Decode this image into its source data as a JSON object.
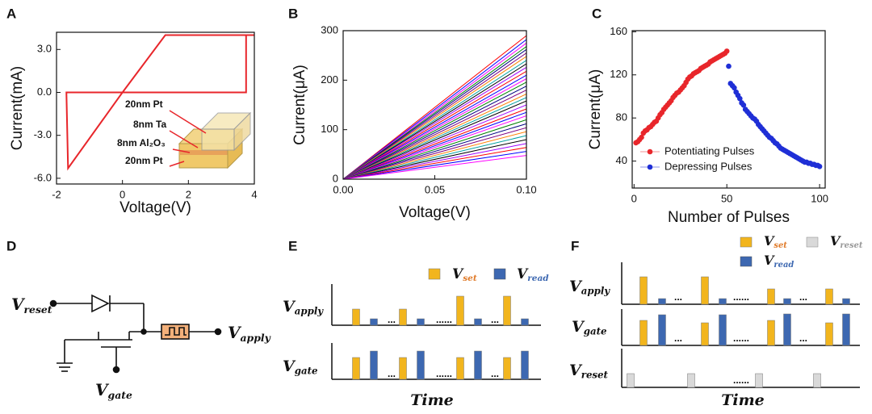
{
  "chart_data": [
    {
      "type": "line",
      "title": "A",
      "x_label": "Voltage(V)",
      "y_label": "Current(mA)",
      "x": [
        0,
        1.3,
        4,
        3.75,
        3.75,
        -1.7,
        -1.65,
        0
      ],
      "series": [
        {
          "color": "#e8262b",
          "values": [
            0,
            4,
            4,
            4,
            0,
            0,
            -5.3,
            0
          ]
        }
      ],
      "xlim": [
        -2,
        4
      ],
      "ylim": [
        -6.4,
        4.2
      ],
      "xticks": [
        -2,
        0,
        2,
        4
      ],
      "yticks": [
        {
          "value": -6,
          "label": "-6.0"
        },
        {
          "value": -3,
          "label": "-3.0"
        },
        {
          "value": 0,
          "label": "0.0"
        },
        {
          "value": 3,
          "label": "3.0"
        }
      ],
      "annotations": [
        "20nm Pt",
        "8nm Ta",
        "8nm Al₂O₃",
        "20nm Pt"
      ]
    },
    {
      "type": "line",
      "title": "B",
      "x_label": "Voltage(V)",
      "y_label": "Current(μA)",
      "x": [
        0,
        0.1
      ],
      "series": [
        {
          "color": "#ff0000",
          "values": [
            0,
            290
          ]
        },
        {
          "color": "#0000ff",
          "values": [
            0,
            282
          ]
        },
        {
          "color": "#ff00ff",
          "values": [
            0,
            275
          ]
        },
        {
          "color": "#008000",
          "values": [
            0,
            268
          ]
        },
        {
          "color": "#000080",
          "values": [
            0,
            262
          ]
        },
        {
          "color": "#800080",
          "values": [
            0,
            255
          ]
        },
        {
          "color": "#ff8000",
          "values": [
            0,
            248
          ]
        },
        {
          "color": "#00a0a0",
          "values": [
            0,
            240
          ]
        },
        {
          "color": "#000000",
          "values": [
            0,
            233
          ]
        },
        {
          "color": "#a000ff",
          "values": [
            0,
            226
          ]
        },
        {
          "color": "#ff0000",
          "values": [
            0,
            218
          ]
        },
        {
          "color": "#0000ff",
          "values": [
            0,
            210
          ]
        },
        {
          "color": "#ff00ff",
          "values": [
            0,
            203
          ]
        },
        {
          "color": "#008000",
          "values": [
            0,
            196
          ]
        },
        {
          "color": "#000080",
          "values": [
            0,
            188
          ]
        },
        {
          "color": "#800080",
          "values": [
            0,
            180
          ]
        },
        {
          "color": "#ff8000",
          "values": [
            0,
            172
          ]
        },
        {
          "color": "#00a0a0",
          "values": [
            0,
            165
          ]
        },
        {
          "color": "#000000",
          "values": [
            0,
            158
          ]
        },
        {
          "color": "#a000ff",
          "values": [
            0,
            150
          ]
        },
        {
          "color": "#ff0000",
          "values": [
            0,
            142
          ]
        },
        {
          "color": "#0000ff",
          "values": [
            0,
            135
          ]
        },
        {
          "color": "#ff00ff",
          "values": [
            0,
            128
          ]
        },
        {
          "color": "#008000",
          "values": [
            0,
            120
          ]
        },
        {
          "color": "#000080",
          "values": [
            0,
            112
          ]
        },
        {
          "color": "#800080",
          "values": [
            0,
            104
          ]
        },
        {
          "color": "#ff8000",
          "values": [
            0,
            96
          ]
        },
        {
          "color": "#00a0a0",
          "values": [
            0,
            88
          ]
        },
        {
          "color": "#000000",
          "values": [
            0,
            80
          ]
        },
        {
          "color": "#a000ff",
          "values": [
            0,
            72
          ]
        },
        {
          "color": "#ff0000",
          "values": [
            0,
            64
          ]
        },
        {
          "color": "#0000ff",
          "values": [
            0,
            56
          ]
        },
        {
          "color": "#ff00ff",
          "values": [
            0,
            48
          ]
        }
      ],
      "xlim": [
        0,
        0.1
      ],
      "ylim": [
        0,
        300
      ],
      "xticks": [
        {
          "value": 0,
          "label": "0.00"
        },
        {
          "value": 0.05,
          "label": "0.05"
        },
        {
          "value": 0.1,
          "label": "0.10"
        }
      ],
      "yticks": [
        0,
        100,
        200,
        300
      ]
    },
    {
      "type": "scatter",
      "title": "C",
      "x_label": "Number of Pulses",
      "y_label": "Current(μA)",
      "legend": "lower left",
      "series": [
        {
          "name": "Potentiating Pulses",
          "color": "#e8262b",
          "x": [
            1,
            2,
            3,
            4,
            5,
            6,
            7,
            8,
            9,
            10,
            11,
            12,
            13,
            14,
            15,
            16,
            17,
            18,
            19,
            20,
            21,
            22,
            23,
            24,
            25,
            26,
            27,
            28,
            29,
            30,
            31,
            32,
            33,
            34,
            35,
            36,
            37,
            38,
            39,
            40,
            41,
            42,
            43,
            44,
            45,
            46,
            47,
            48,
            49,
            50
          ],
          "values": [
            57,
            58,
            60,
            62,
            66,
            68,
            69,
            71,
            72,
            74,
            76,
            77,
            80,
            83,
            85,
            88,
            90,
            92,
            94,
            96,
            99,
            101,
            103,
            104,
            106,
            108,
            110,
            113,
            116,
            118,
            119,
            121,
            122,
            123,
            124,
            126,
            127,
            128,
            129,
            130,
            132,
            133,
            134,
            135,
            136,
            137,
            138,
            139,
            140,
            142
          ]
        },
        {
          "name": "Depressing Pulses",
          "color": "#1f2fd6",
          "x": [
            51,
            52,
            53,
            54,
            55,
            56,
            57,
            58,
            59,
            60,
            61,
            62,
            63,
            64,
            65,
            66,
            67,
            68,
            69,
            70,
            71,
            72,
            73,
            74,
            75,
            76,
            77,
            78,
            79,
            80,
            81,
            82,
            83,
            84,
            85,
            86,
            87,
            88,
            89,
            90,
            91,
            92,
            93,
            94,
            95,
            96,
            97,
            98,
            99,
            100
          ],
          "values": [
            128,
            112,
            110,
            108,
            104,
            101,
            98,
            94,
            92,
            88,
            86,
            84,
            82,
            80,
            79,
            77,
            74,
            72,
            70,
            68,
            66,
            64,
            62,
            61,
            59,
            57,
            56,
            54,
            52,
            51,
            50,
            49,
            48,
            47,
            46,
            45,
            44,
            43,
            42,
            41,
            40,
            39,
            39,
            38,
            38,
            37,
            37,
            36,
            36,
            35
          ]
        }
      ],
      "xlim": [
        -1,
        103
      ],
      "ylim": [
        15,
        161
      ],
      "xticks": [
        0,
        50,
        100
      ],
      "yticks": [
        40,
        80,
        120,
        160
      ]
    }
  ],
  "circuit": {
    "title": "D",
    "labels": [
      {
        "main": "V",
        "sub": "reset"
      },
      {
        "main": "V",
        "sub": "apply"
      },
      {
        "main": "V",
        "sub": "gate"
      }
    ]
  },
  "pulse_e": {
    "title": "E",
    "legend": [
      {
        "main": "V",
        "sub": "set"
      },
      {
        "main": "V",
        "sub": "read"
      }
    ],
    "rows": [
      {
        "main": "V",
        "sub": "apply"
      },
      {
        "main": "V",
        "sub": "gate"
      }
    ],
    "ellipses": [
      "...",
      "......"
    ],
    "x_label": "Time"
  },
  "pulse_f": {
    "title": "F",
    "legend": [
      {
        "main": "V",
        "sub": "set"
      },
      {
        "main": "V",
        "sub": "reset"
      },
      {
        "main": "V",
        "sub": "read"
      }
    ],
    "rows": [
      {
        "main": "V",
        "sub": "apply"
      },
      {
        "main": "V",
        "sub": "gate"
      },
      {
        "main": "V",
        "sub": "reset"
      }
    ],
    "ellipses": [
      "...",
      "......"
    ],
    "x_label": "Time"
  }
}
